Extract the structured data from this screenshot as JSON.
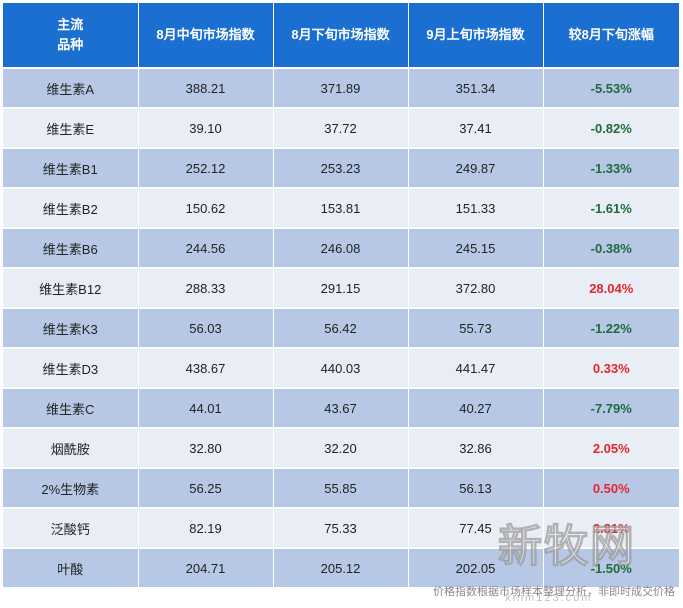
{
  "headers": [
    "主流\n品种",
    "8月中旬市场指数",
    "8月下旬市场指数",
    "9月上旬市场指数",
    "较8月下旬涨幅"
  ],
  "header_color": "#1a6fd1",
  "row_colors": {
    "odd": "#b7c8e7",
    "even": "#e8edf6"
  },
  "change_colors": {
    "negative": "#1e6b39",
    "positive": "#e4262b"
  },
  "rows": [
    {
      "name": "维生素A",
      "mid_aug": "388.21",
      "late_aug": "371.89",
      "early_sep": "351.34",
      "change": "-5.53%",
      "direction": "neg"
    },
    {
      "name": "维生素E",
      "mid_aug": "39.10",
      "late_aug": "37.72",
      "early_sep": "37.41",
      "change": "-0.82%",
      "direction": "neg"
    },
    {
      "name": "维生素B1",
      "mid_aug": "252.12",
      "late_aug": "253.23",
      "early_sep": "249.87",
      "change": "-1.33%",
      "direction": "neg"
    },
    {
      "name": "维生素B2",
      "mid_aug": "150.62",
      "late_aug": "153.81",
      "early_sep": "151.33",
      "change": "-1.61%",
      "direction": "neg"
    },
    {
      "name": "维生素B6",
      "mid_aug": "244.56",
      "late_aug": "246.08",
      "early_sep": "245.15",
      "change": "-0.38%",
      "direction": "neg"
    },
    {
      "name": "维生素B12",
      "mid_aug": "288.33",
      "late_aug": "291.15",
      "early_sep": "372.80",
      "change": "28.04%",
      "direction": "pos"
    },
    {
      "name": "维生素K3",
      "mid_aug": "56.03",
      "late_aug": "56.42",
      "early_sep": "55.73",
      "change": "-1.22%",
      "direction": "neg"
    },
    {
      "name": "维生素D3",
      "mid_aug": "438.67",
      "late_aug": "440.03",
      "early_sep": "441.47",
      "change": "0.33%",
      "direction": "pos"
    },
    {
      "name": "维生素C",
      "mid_aug": "44.01",
      "late_aug": "43.67",
      "early_sep": "40.27",
      "change": "-7.79%",
      "direction": "neg"
    },
    {
      "name": "烟酰胺",
      "mid_aug": "32.80",
      "late_aug": "32.20",
      "early_sep": "32.86",
      "change": "2.05%",
      "direction": "pos"
    },
    {
      "name": "2%生物素",
      "mid_aug": "56.25",
      "late_aug": "55.85",
      "early_sep": "56.13",
      "change": "0.50%",
      "direction": "pos"
    },
    {
      "name": "泛酸钙",
      "mid_aug": "82.19",
      "late_aug": "75.33",
      "early_sep": "77.45",
      "change": "2.81%",
      "direction": "pos"
    },
    {
      "name": "叶酸",
      "mid_aug": "204.71",
      "late_aug": "205.12",
      "early_sep": "202.05",
      "change": "-1.50%",
      "direction": "neg"
    }
  ],
  "footnote": "价格指数根据市场样本整理分析，非即时成交价格",
  "watermark": {
    "logo_text": "新牧网",
    "url": "xinm123.com"
  }
}
